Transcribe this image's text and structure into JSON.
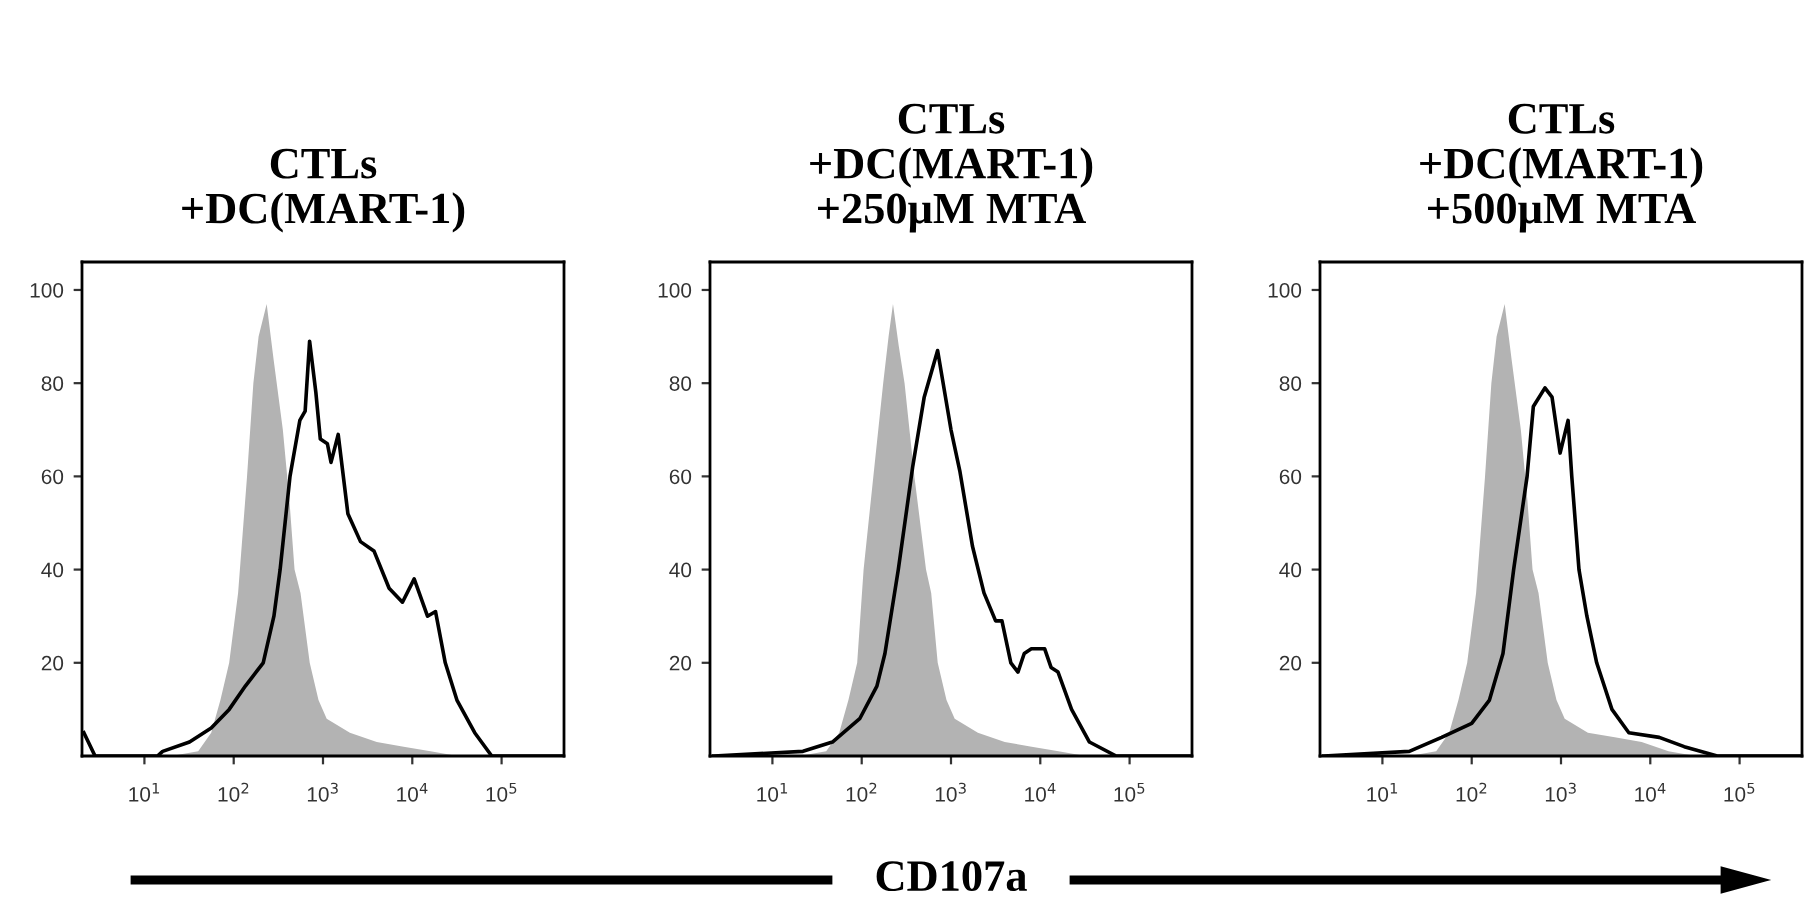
{
  "chart_data": [
    {
      "type": "area",
      "title": "CTLs\n+DC(MART-1)",
      "xlim": [
        2,
        500000
      ],
      "ylim": [
        0,
        106
      ],
      "log": "x",
      "xticks": [
        {
          "value": 10,
          "label": "10$^{1}$"
        },
        {
          "value": 100,
          "label": "10$^{2}$"
        },
        {
          "value": 1000,
          "label": "10$^{3}$"
        },
        {
          "value": 10000,
          "label": "10$^{4}$"
        },
        {
          "value": 100000,
          "label": "10$^{5}$"
        }
      ],
      "yticks": [
        20,
        40,
        60,
        80,
        100
      ],
      "series": [
        {
          "type": "area",
          "color": "#b3b3b3",
          "x": [
            20,
            40,
            56,
            71,
            89,
            112,
            141,
            166,
            190,
            234,
            280,
            355,
            420,
            480,
            560,
            710,
            890,
            1100,
            2000,
            4000,
            8000,
            16000,
            32000
          ],
          "values": [
            0,
            1,
            5,
            12,
            20,
            35,
            60,
            80,
            90,
            97,
            85,
            70,
            55,
            40,
            35,
            20,
            12,
            8,
            5,
            3,
            2,
            1,
            0
          ]
        },
        {
          "type": "line",
          "color": "#000000",
          "x": [
            2.1,
            2.8,
            14,
            16,
            32,
            56,
            89,
            135,
            214,
            282,
            331,
            427,
            550,
            631,
            708,
            832,
            933,
            1120,
            1230,
            1480,
            1900,
            2630,
            3720,
            5500,
            7760,
            10500,
            14800,
            18200,
            23400,
            31600,
            50000,
            77600,
            500000
          ],
          "values": [
            5,
            0,
            0,
            1,
            3,
            6,
            10,
            15,
            20,
            30,
            40,
            60,
            72,
            74,
            89,
            78,
            68,
            67,
            63,
            69,
            52,
            46,
            44,
            36,
            33,
            38,
            30,
            31,
            20,
            12,
            5,
            0,
            0
          ]
        }
      ]
    },
    {
      "type": "area",
      "title": "CTLs\n+DC(MART-1)\n+250μM MTA",
      "xlabel": "CD107a",
      "xlim": [
        2,
        500000
      ],
      "ylim": [
        0,
        106
      ],
      "log": "x",
      "xticks": [
        {
          "value": 10,
          "label": "10$^{1}$"
        },
        {
          "value": 100,
          "label": "10$^{2}$"
        },
        {
          "value": 1000,
          "label": "10$^{3}$"
        },
        {
          "value": 10000,
          "label": "10$^{4}$"
        },
        {
          "value": 100000,
          "label": "10$^{5}$"
        }
      ],
      "yticks": [
        20,
        40,
        60,
        80,
        100
      ],
      "series": [
        {
          "type": "area",
          "color": "#b3b3b3",
          "x": [
            20,
            40,
            56,
            71,
            89,
            105,
            135,
            174,
            200,
            224,
            260,
            302,
            389,
            525,
            600,
            710,
            890,
            1100,
            2000,
            4000,
            8000,
            16000,
            32000
          ],
          "values": [
            0,
            1,
            5,
            12,
            20,
            40,
            60,
            80,
            90,
            97,
            88,
            80,
            60,
            40,
            35,
            20,
            12,
            8,
            5,
            3,
            2,
            1,
            0
          ]
        },
        {
          "type": "line",
          "color": "#000000",
          "x": [
            2.2,
            22,
            47,
            95,
            148,
            182,
            257,
            372,
            501,
            708,
            1000,
            1260,
            1740,
            2340,
            3160,
            3720,
            4680,
            5620,
            6610,
            7940,
            11200,
            13200,
            15800,
            22400,
            35500,
            70800,
            500000
          ],
          "values": [
            0,
            1,
            3,
            8,
            15,
            22,
            40,
            62,
            77,
            87,
            70,
            61,
            45,
            35,
            29,
            29,
            20,
            18,
            22,
            23,
            23,
            19,
            18,
            10,
            3,
            0,
            0
          ]
        }
      ]
    },
    {
      "type": "area",
      "title": "CTLs\n+DC(MART-1)\n+500μM MTA",
      "xlim": [
        2,
        500000
      ],
      "ylim": [
        0,
        106
      ],
      "log": "x",
      "xticks": [
        {
          "value": 10,
          "label": "10$^{1}$"
        },
        {
          "value": 100,
          "label": "10$^{2}$"
        },
        {
          "value": 1000,
          "label": "10$^{3}$"
        },
        {
          "value": 10000,
          "label": "10$^{4}$"
        },
        {
          "value": 100000,
          "label": "10$^{5}$"
        }
      ],
      "yticks": [
        20,
        40,
        60,
        80,
        100
      ],
      "series": [
        {
          "type": "area",
          "color": "#b3b3b3",
          "x": [
            20,
            40,
            56,
            71,
            89,
            112,
            141,
            166,
            190,
            234,
            280,
            355,
            420,
            480,
            560,
            710,
            890,
            1100,
            2000,
            4000,
            8000,
            16000,
            32000
          ],
          "values": [
            0,
            1,
            5,
            12,
            20,
            35,
            60,
            80,
            90,
            97,
            85,
            70,
            55,
            40,
            35,
            20,
            12,
            8,
            5,
            4,
            3,
            1,
            0
          ]
        },
        {
          "type": "line",
          "color": "#000000",
          "x": [
            2.2,
            20,
            46,
            100,
            158,
            224,
            295,
            417,
            490,
            661,
            794,
            977,
            1200,
            1320,
            1590,
            1950,
            2510,
            3720,
            5750,
            12600,
            24000,
            56200,
            500000
          ],
          "values": [
            0,
            1,
            4,
            7,
            12,
            22,
            40,
            60,
            75,
            79,
            77,
            65,
            72,
            60,
            40,
            30,
            20,
            10,
            5,
            4,
            2,
            0,
            0
          ]
        }
      ]
    }
  ]
}
